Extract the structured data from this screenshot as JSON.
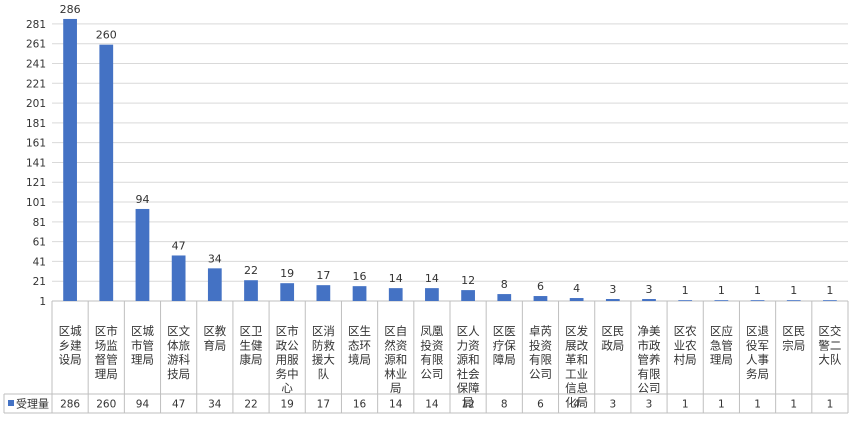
{
  "chart_data": {
    "type": "bar",
    "categories": [
      "区城乡建设局",
      "区市场监督管理局",
      "区城市管理局",
      "区文体旅游科技局",
      "区教育局",
      "区卫生健康局",
      "区市政公用服务中心",
      "区消防救援大队",
      "区生态环境局",
      "区自然资源和林业局",
      "凤凰投资有限公司",
      "区人力资源和社会保障局",
      "区医疗保障局",
      "卓芮投资有限公司",
      "区发展改革和工业信息化局",
      "区民政局",
      "净美市政管养有限公司",
      "区农业农村局",
      "区应急管理局",
      "区退役军人事务局",
      "区民宗局",
      "区交警二大队"
    ],
    "category_lines": [
      [
        "区城",
        "乡建",
        "设局"
      ],
      [
        "区市",
        "场监",
        "督管",
        "理局"
      ],
      [
        "区城",
        "市管",
        "理局"
      ],
      [
        "区文",
        "体旅",
        "游科",
        "技局"
      ],
      [
        "区教",
        "育局"
      ],
      [
        "区卫",
        "生健",
        "康局"
      ],
      [
        "区市",
        "政公",
        "用服",
        "务中",
        "心"
      ],
      [
        "区消",
        "防救",
        "援大",
        "队"
      ],
      [
        "区生",
        "态环",
        "境局"
      ],
      [
        "区自",
        "然资",
        "源和",
        "林业",
        "局"
      ],
      [
        "凤凰",
        "投资",
        "有限",
        "公司"
      ],
      [
        "区人",
        "力资",
        "源和",
        "社会",
        "保障",
        "局"
      ],
      [
        "区医",
        "疗保",
        "障局"
      ],
      [
        "卓芮",
        "投资",
        "有限",
        "公司"
      ],
      [
        "区发",
        "展改",
        "革和",
        "工业",
        "信息",
        "化局"
      ],
      [
        "区民",
        "政局"
      ],
      [
        "净美",
        "市政",
        "管养",
        "有限",
        "公司"
      ],
      [
        "区农",
        "业农",
        "村局"
      ],
      [
        "区应",
        "急管",
        "理局"
      ],
      [
        "区退",
        "役军",
        "人事",
        "务局"
      ],
      [
        "区民",
        "宗局"
      ],
      [
        "区交",
        "警二",
        "大队"
      ]
    ],
    "series": [
      {
        "name": "受理量",
        "values": [
          286,
          260,
          94,
          47,
          34,
          22,
          19,
          17,
          16,
          14,
          14,
          12,
          8,
          6,
          4,
          3,
          3,
          1,
          1,
          1,
          1,
          1
        ]
      }
    ],
    "y_ticks": [
      1,
      21,
      41,
      61,
      81,
      101,
      121,
      141,
      161,
      181,
      201,
      221,
      241,
      261,
      281
    ],
    "ylim": [
      1,
      291
    ],
    "grid": true,
    "data_table": true,
    "legend": "data-table-row",
    "colors": {
      "bar": "#4472C4",
      "grid": "#D9D9D9",
      "axis": "#BFBFBF",
      "text": "#333333"
    }
  }
}
